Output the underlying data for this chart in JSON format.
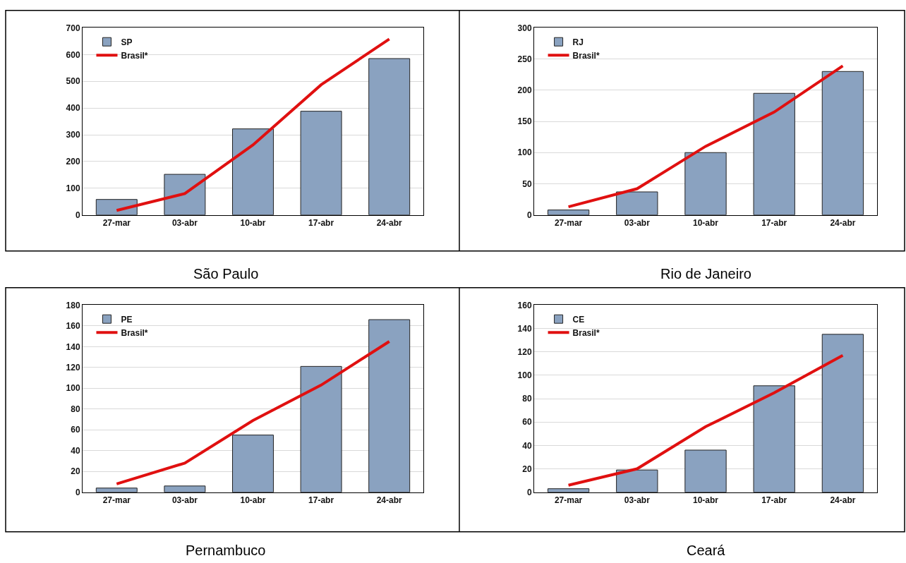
{
  "chart_data": [
    {
      "type": "bar",
      "title": "São Paulo",
      "categories": [
        "27-mar",
        "03-abr",
        "10-abr",
        "17-abr",
        "24-abr"
      ],
      "ylim": [
        0,
        700
      ],
      "yticks": [
        0,
        100,
        200,
        300,
        400,
        500,
        600,
        700
      ],
      "grid": "y",
      "legend": "top left",
      "series": [
        {
          "name": "SP",
          "color": "#8aa2c0",
          "values": [
            58,
            152,
            322,
            388,
            585
          ]
        },
        {
          "name": "Brasil*",
          "type": "line",
          "color": "#e01010",
          "values": [
            17,
            80,
            262,
            487,
            658
          ]
        }
      ]
    },
    {
      "type": "bar",
      "title": "Rio de Janeiro",
      "categories": [
        "27-mar",
        "03-abr",
        "10-abr",
        "17-abr",
        "24-abr"
      ],
      "ylim": [
        0,
        300
      ],
      "yticks": [
        0,
        50,
        100,
        150,
        200,
        250,
        300
      ],
      "grid": "y",
      "legend": "top left",
      "series": [
        {
          "name": "RJ",
          "color": "#8aa2c0",
          "values": [
            8,
            37,
            100,
            195,
            230
          ]
        },
        {
          "name": "Brasil*",
          "type": "line",
          "color": "#e01010",
          "values": [
            13,
            42,
            110,
            165,
            239
          ]
        }
      ]
    },
    {
      "type": "bar",
      "title": "Pernambuco",
      "categories": [
        "27-mar",
        "03-abr",
        "10-abr",
        "17-abr",
        "24-abr"
      ],
      "ylim": [
        0,
        180
      ],
      "yticks": [
        0,
        20,
        40,
        60,
        80,
        100,
        120,
        140,
        160,
        180
      ],
      "grid": "y",
      "legend": "top left",
      "series": [
        {
          "name": "PE",
          "color": "#8aa2c0",
          "values": [
            4,
            6,
            55,
            121,
            166
          ]
        },
        {
          "name": "Brasil*",
          "type": "line",
          "color": "#e01010",
          "values": [
            8,
            28,
            69,
            103,
            145
          ]
        }
      ]
    },
    {
      "type": "bar",
      "title": "Ceará",
      "categories": [
        "27-mar",
        "03-abr",
        "10-abr",
        "17-abr",
        "24-abr"
      ],
      "ylim": [
        0,
        160
      ],
      "yticks": [
        0,
        20,
        40,
        60,
        80,
        100,
        120,
        140,
        160
      ],
      "grid": "y",
      "legend": "top left",
      "series": [
        {
          "name": "CE",
          "color": "#8aa2c0",
          "values": [
            3,
            19,
            36,
            91,
            135
          ]
        },
        {
          "name": "Brasil*",
          "type": "line",
          "color": "#e01010",
          "values": [
            6,
            20,
            56,
            85,
            117
          ]
        }
      ]
    }
  ]
}
